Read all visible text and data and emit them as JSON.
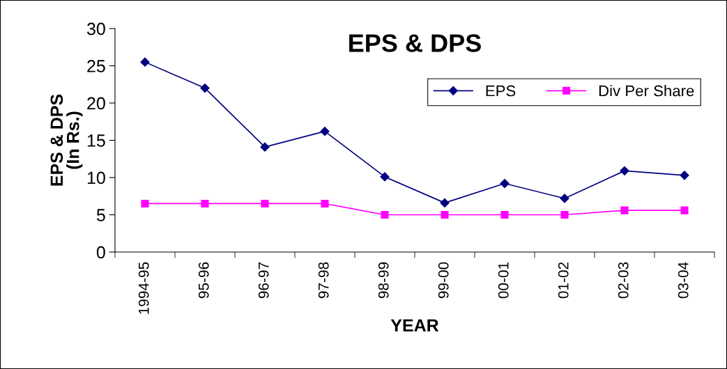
{
  "chart_data": {
    "type": "line",
    "title": "EPS & DPS",
    "xlabel": "YEAR",
    "ylabel": "EPS & DPS\n(In Rs.)",
    "categories": [
      "1994-95",
      "95-96",
      "96-97",
      "97-98",
      "98-99",
      "99-00",
      "00-01",
      "01-02",
      "02-03",
      "03-04"
    ],
    "series": [
      {
        "name": "EPS",
        "color": "#000080",
        "marker": "diamond",
        "values": [
          25.5,
          22.0,
          14.1,
          16.2,
          10.1,
          6.6,
          9.2,
          7.2,
          10.9,
          10.3
        ]
      },
      {
        "name": "Div Per Share",
        "color": "#ff00ff",
        "marker": "square",
        "values": [
          6.5,
          6.5,
          6.5,
          6.5,
          5.0,
          5.0,
          5.0,
          5.0,
          5.6,
          5.6
        ]
      }
    ],
    "ylim": [
      0,
      30
    ],
    "yticks": [
      0,
      5,
      10,
      15,
      20,
      25,
      30
    ],
    "grid": false,
    "legend": "top right"
  }
}
